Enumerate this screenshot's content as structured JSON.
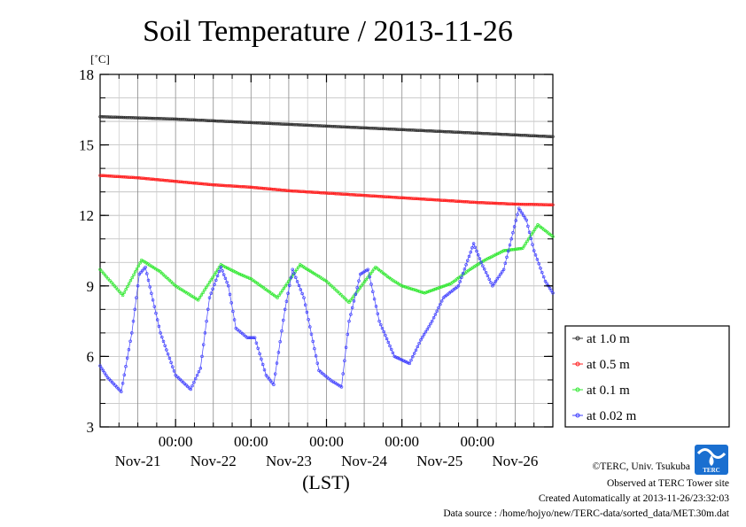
{
  "chart_data": {
    "type": "line",
    "title": "Soil Temperature / 2013-11-26",
    "ylabel": "[˚C]",
    "xlabel": "(LST)",
    "ylim": [
      3,
      18
    ],
    "y_ticks": [
      3,
      6,
      9,
      12,
      15,
      18
    ],
    "xlim_days": [
      0,
      6
    ],
    "x_time_ticks": [
      "00:00",
      "00:00",
      "00:00",
      "00:00",
      "00:00"
    ],
    "x_date_ticks": [
      "Nov-21",
      "Nov-22",
      "Nov-23",
      "Nov-24",
      "Nov-25",
      "Nov-26"
    ],
    "grid": true,
    "legend_position": "right",
    "series": [
      {
        "name": "at 1.0 m",
        "color": "#333333",
        "x": [
          0,
          1,
          2,
          3,
          4,
          5,
          6
        ],
        "values": [
          16.2,
          16.1,
          15.95,
          15.8,
          15.65,
          15.5,
          15.35
        ]
      },
      {
        "name": "at 0.5 m",
        "color": "#ff2020",
        "x": [
          0,
          0.5,
          1,
          1.5,
          2,
          2.5,
          3,
          3.5,
          4,
          4.5,
          5,
          5.5,
          6
        ],
        "values": [
          13.7,
          13.6,
          13.45,
          13.3,
          13.2,
          13.05,
          12.95,
          12.85,
          12.75,
          12.65,
          12.55,
          12.48,
          12.45
        ]
      },
      {
        "name": "at 0.1 m",
        "color": "#30e830",
        "x": [
          0,
          0.3,
          0.55,
          0.8,
          1.0,
          1.3,
          1.6,
          1.85,
          2.0,
          2.35,
          2.65,
          2.85,
          3.0,
          3.3,
          3.65,
          3.85,
          4.0,
          4.3,
          4.65,
          4.9,
          5.1,
          5.35,
          5.6,
          5.8,
          6.0
        ],
        "values": [
          9.7,
          8.6,
          10.1,
          9.6,
          9.0,
          8.4,
          9.9,
          9.5,
          9.3,
          8.5,
          9.9,
          9.5,
          9.2,
          8.3,
          9.8,
          9.3,
          9.0,
          8.7,
          9.1,
          9.7,
          10.1,
          10.5,
          10.6,
          11.6,
          11.1
        ]
      },
      {
        "name": "at 0.02 m",
        "color": "#4040ff",
        "x": [
          0,
          0.1,
          0.28,
          0.42,
          0.52,
          0.6,
          0.8,
          1.0,
          1.2,
          1.33,
          1.45,
          1.6,
          1.7,
          1.8,
          1.95,
          2.05,
          2.2,
          2.3,
          2.45,
          2.55,
          2.7,
          2.9,
          3.05,
          3.2,
          3.3,
          3.45,
          3.55,
          3.7,
          3.9,
          4.1,
          4.25,
          4.4,
          4.55,
          4.75,
          4.95,
          5.05,
          5.2,
          5.35,
          5.55,
          5.65,
          5.75,
          5.9,
          6.0
        ],
        "values": [
          5.6,
          5.1,
          4.5,
          7.0,
          9.5,
          9.8,
          7.0,
          5.2,
          4.6,
          5.5,
          8.5,
          9.8,
          9.0,
          7.2,
          6.8,
          6.8,
          5.2,
          4.8,
          8.0,
          9.7,
          8.5,
          5.4,
          5.0,
          4.7,
          7.5,
          9.5,
          9.7,
          7.5,
          6.0,
          5.7,
          6.7,
          7.5,
          8.5,
          9.0,
          10.8,
          10.0,
          9.0,
          9.7,
          12.3,
          11.8,
          10.5,
          9.2,
          8.7
        ]
      }
    ]
  },
  "footer": {
    "copyright": "©TERC, Univ. Tsukuba",
    "observed": "Observed at TERC Tower site",
    "created": "Created Automatically at 2013-11-26/23:32:03",
    "source": "Data source : /home/hojyo/new/TERC-data/sorted_data/MET.30m.dat",
    "logo_text": "TERC"
  }
}
